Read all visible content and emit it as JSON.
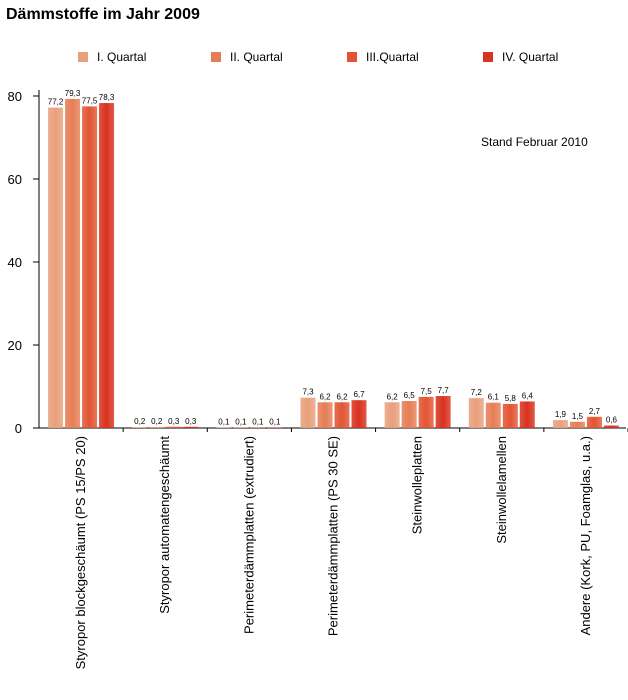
{
  "title": "Dämmstoffe im Jahr 2009",
  "note": "Stand Februar 2010",
  "colors": [
    "#e8a07c",
    "#e67e55",
    "#e25533",
    "#d9321f"
  ],
  "chart_data": {
    "type": "bar",
    "title": "Dämmstoffe im Jahr 2009",
    "xlabel": "",
    "ylabel": "",
    "ylim": [
      0,
      90
    ],
    "yticks": [
      0,
      20,
      40,
      60,
      80
    ],
    "grid": false,
    "legend_position": "top",
    "categories": [
      "Styropor blockgeschäumt (PS 15/PS 20)",
      "Styropor automatengeschäumt",
      "Perimeterdämmplatten (extrudiert)",
      "Perimeterdämmplatten (PS 30 SE)",
      "Steinwolleplatten",
      "Steinwollelamellen",
      "Andere (Kork, PU, Foamglas, u.a.)"
    ],
    "series": [
      {
        "name": "I. Quartal",
        "values": [
          77.2,
          0.2,
          0.1,
          7.3,
          6.2,
          7.2,
          1.9
        ],
        "labels": [
          "77,2",
          "0,2",
          "0,1",
          "7,3",
          "6,2",
          "7,2",
          "1,9"
        ]
      },
      {
        "name": "II. Quartal",
        "values": [
          79.3,
          0.2,
          0.1,
          6.2,
          6.5,
          6.1,
          1.5
        ],
        "labels": [
          "79,3",
          "0,2",
          "0,1",
          "6,2",
          "6,5",
          "6,1",
          "1,5"
        ]
      },
      {
        "name": "III.Quartal",
        "values": [
          77.5,
          0.3,
          0.1,
          6.2,
          7.5,
          5.8,
          2.7
        ],
        "labels": [
          "77,5",
          "0,3",
          "0,1",
          "6,2",
          "7,5",
          "5,8",
          "2,7"
        ]
      },
      {
        "name": "IV. Quartal",
        "values": [
          78.3,
          0.3,
          0.1,
          6.7,
          7.7,
          6.4,
          0.6
        ],
        "labels": [
          "78,3",
          "0,3",
          "0,1",
          "6,7",
          "7,7",
          "6,4",
          "0,6"
        ]
      }
    ]
  }
}
